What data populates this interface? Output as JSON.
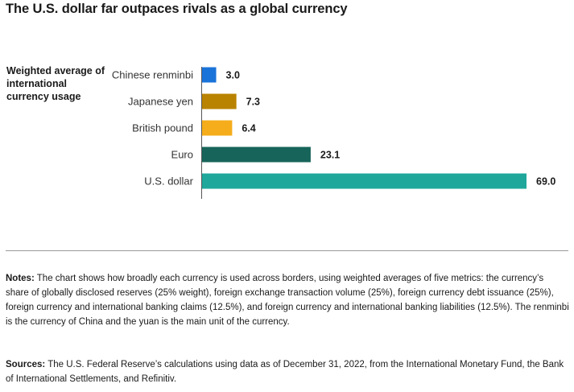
{
  "title": "The U.S. dollar far outpaces rivals as a global currency",
  "side_label": "Weighted average of international currency usage",
  "chart_data": {
    "type": "bar",
    "orientation": "horizontal",
    "categories": [
      "Chinese renminbi",
      "Japanese yen",
      "British pound",
      "Euro",
      "U.S. dollar"
    ],
    "values": [
      3.0,
      7.3,
      6.4,
      23.1,
      69.0
    ],
    "value_labels": [
      "3.0",
      "7.3",
      "6.4",
      "23.1",
      "69.0"
    ],
    "colors": [
      "#1a73d9",
      "#b98300",
      "#f5ad1b",
      "#17645a",
      "#1fa79b"
    ],
    "title": "",
    "xlabel": "",
    "ylabel": "",
    "xlim": [
      0,
      69.0
    ],
    "grid": false
  },
  "notes": {
    "lead": "Notes:",
    "text": " The chart shows how broadly each currency is used across borders, using weighted averages of five metrics: the currency’s share of globally disclosed reserves (25% weight), foreign exchange transaction volume (25%), foreign currency debt issuance (25%), foreign currency and international banking claims (12.5%), and foreign currency and international banking liabilities (12.5%). The renminbi is the currency of China and the yuan is the main unit of the currency."
  },
  "sources": {
    "lead": "Sources:",
    "text": " The U.S. Federal Reserve’s calculations using data as of December 31, 2022, from the International Monetary Fund, the Bank of International Settlements, and Refinitiv."
  }
}
